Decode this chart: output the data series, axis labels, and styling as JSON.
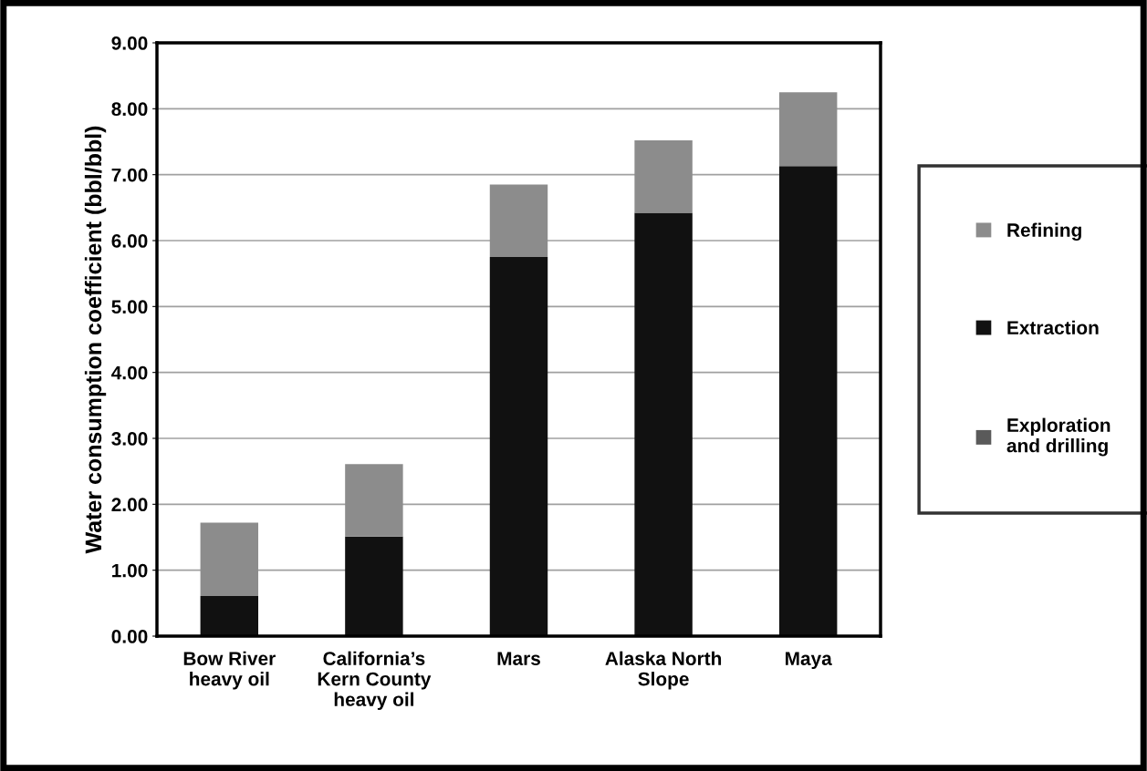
{
  "chart_data": {
    "type": "bar",
    "stacked": true,
    "ylabel": "Water consumption coefficient (bbl/bbl)",
    "categories": [
      "Bow River\nheavy oil",
      "California’s\nKern County\nheavy oil",
      "Mars",
      "Alaska North\nSlope",
      "Maya"
    ],
    "series": [
      {
        "name": "Exploration\nand drilling",
        "color": "#5a5a5a",
        "values": [
          0.01,
          0.01,
          0.01,
          0.01,
          0.01
        ]
      },
      {
        "name": "Extraction",
        "color": "#111111",
        "values": [
          0.6,
          1.5,
          5.74,
          6.41,
          7.12
        ]
      },
      {
        "name": "Refining",
        "color": "#8c8c8c",
        "values": [
          1.11,
          1.1,
          1.1,
          1.1,
          1.12
        ]
      }
    ],
    "ylim": [
      0,
      9
    ],
    "yticks": [
      {
        "value": 0,
        "label": "0.00"
      },
      {
        "value": 1,
        "label": "1.00"
      },
      {
        "value": 2,
        "label": "2.00"
      },
      {
        "value": 3,
        "label": "3.00"
      },
      {
        "value": 4,
        "label": "4.00"
      },
      {
        "value": 5,
        "label": "5.00"
      },
      {
        "value": 6,
        "label": "6.00"
      },
      {
        "value": 7,
        "label": "7.00"
      },
      {
        "value": 8,
        "label": "8.00"
      },
      {
        "value": 9,
        "label": "9.00"
      }
    ],
    "grid": "y",
    "legend": "right"
  }
}
